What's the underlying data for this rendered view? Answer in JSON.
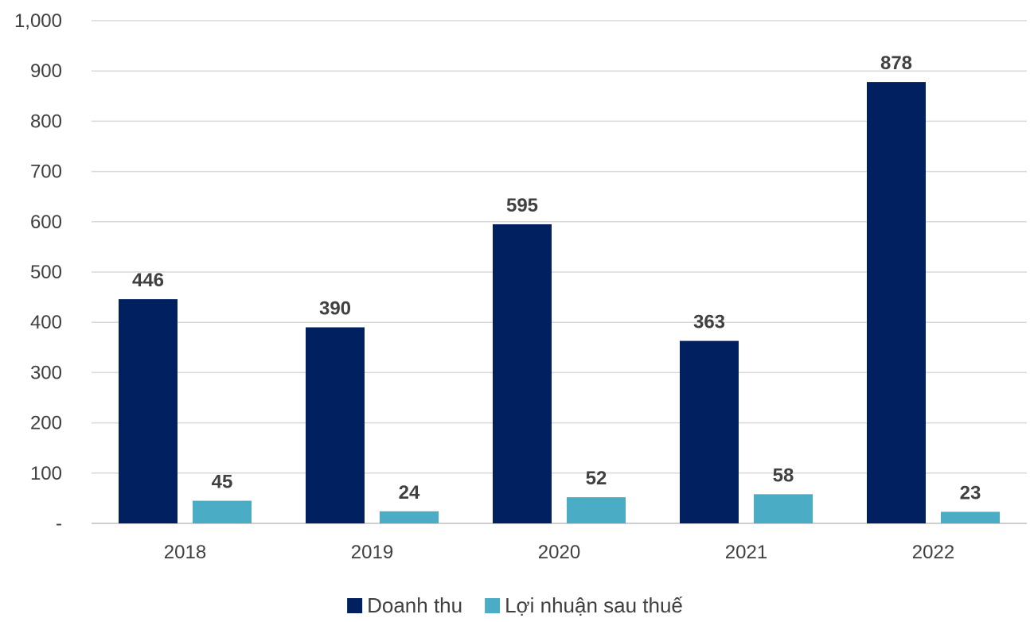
{
  "chart_data": {
    "type": "bar",
    "categories": [
      "2018",
      "2019",
      "2020",
      "2021",
      "2022"
    ],
    "series": [
      {
        "name": "Doanh thu",
        "color": "#002060",
        "values": [
          446,
          390,
          595,
          363,
          878
        ],
        "labels": [
          "446",
          "390",
          "595",
          "363",
          "878"
        ]
      },
      {
        "name": "Lợi nhuận sau thuế",
        "color": "#4BACC6",
        "values": [
          45,
          24,
          52,
          58,
          23
        ],
        "labels": [
          "45",
          "24",
          "52",
          "58",
          "23"
        ]
      }
    ],
    "ylim": [
      0,
      1000
    ],
    "yticks": [
      0,
      100,
      200,
      300,
      400,
      500,
      600,
      700,
      800,
      900,
      1000
    ],
    "ytick_labels": [
      "-",
      "100",
      "200",
      "300",
      "400",
      "500",
      "600",
      "700",
      "800",
      "900",
      "1,000"
    ],
    "grid": true,
    "legend_position": "bottom"
  }
}
